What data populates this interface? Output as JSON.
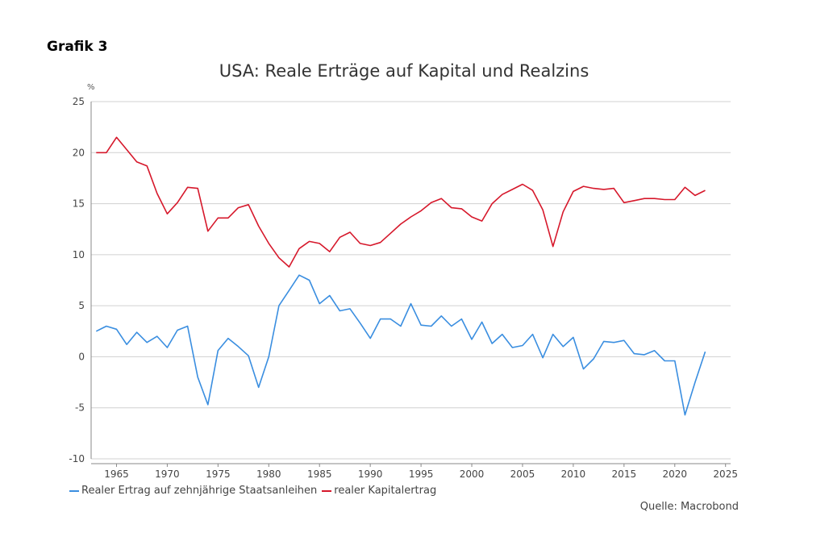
{
  "header": {
    "grafik_label": "Grafik 3"
  },
  "source_text": "Quelle: Macrobond",
  "colors": {
    "real_yield": "#3a8ee0",
    "capital_return": "#d6182b",
    "grid": "#d0d0d0",
    "axis": "#888888"
  },
  "chart_data": {
    "type": "line",
    "title": "USA: Reale Erträge auf Kapital und Realzins",
    "ylabel": "%",
    "xlabel": "",
    "xlim": [
      1962.5,
      2025.5
    ],
    "ylim": [
      -10,
      25
    ],
    "y_ticks": [
      -10,
      -5,
      0,
      5,
      10,
      15,
      20,
      25
    ],
    "x_ticks": [
      1965,
      1970,
      1975,
      1980,
      1985,
      1990,
      1995,
      2000,
      2005,
      2010,
      2015,
      2020,
      2025
    ],
    "grid": true,
    "legend_position": "bottom-left",
    "x": [
      1963,
      1964,
      1965,
      1966,
      1967,
      1968,
      1969,
      1970,
      1971,
      1972,
      1973,
      1974,
      1975,
      1976,
      1977,
      1978,
      1979,
      1980,
      1981,
      1982,
      1983,
      1984,
      1985,
      1986,
      1987,
      1988,
      1989,
      1990,
      1991,
      1992,
      1993,
      1994,
      1995,
      1996,
      1997,
      1998,
      1999,
      2000,
      2001,
      2002,
      2003,
      2004,
      2005,
      2006,
      2007,
      2008,
      2009,
      2010,
      2011,
      2012,
      2013,
      2014,
      2015,
      2016,
      2017,
      2018,
      2019,
      2020,
      2021,
      2022,
      2023
    ],
    "series": [
      {
        "name": "Realer Ertrag auf zehnjährige Staatsanleihen",
        "color": "#3a8ee0",
        "values": [
          2.5,
          3.0,
          2.7,
          1.2,
          2.4,
          1.4,
          2.0,
          0.9,
          2.6,
          3.0,
          -2.0,
          -4.7,
          0.6,
          1.8,
          1.0,
          0.1,
          -3.0,
          0.0,
          5.0,
          6.5,
          8.0,
          7.5,
          5.2,
          6.0,
          4.5,
          4.7,
          3.3,
          1.8,
          3.7,
          3.7,
          3.0,
          5.2,
          3.1,
          3.0,
          4.0,
          3.0,
          3.7,
          1.7,
          3.4,
          1.3,
          2.2,
          0.9,
          1.1,
          2.2,
          -0.1,
          2.2,
          1.0,
          1.9,
          -1.2,
          -0.2,
          1.5,
          1.4,
          1.6,
          0.3,
          0.2,
          0.6,
          -0.4,
          -0.4,
          -5.7,
          -2.5,
          0.5
        ]
      },
      {
        "name": "realer Kapitalertrag",
        "color": "#d6182b",
        "values": [
          20.0,
          20.0,
          21.5,
          20.3,
          19.1,
          18.7,
          16.0,
          14.0,
          15.1,
          16.6,
          16.5,
          12.3,
          13.6,
          13.6,
          14.6,
          14.9,
          12.8,
          11.1,
          9.7,
          8.8,
          10.6,
          11.3,
          11.1,
          10.3,
          11.7,
          12.2,
          11.1,
          10.9,
          11.2,
          12.1,
          13.0,
          13.7,
          14.3,
          15.1,
          15.5,
          14.6,
          14.5,
          13.7,
          13.3,
          15.0,
          15.9,
          16.4,
          16.9,
          16.3,
          14.4,
          10.8,
          14.2,
          16.2,
          16.7,
          16.5,
          16.4,
          16.5,
          15.1,
          15.3,
          15.5,
          15.5,
          15.4,
          15.4,
          16.6,
          15.8,
          16.3
        ]
      }
    ]
  }
}
